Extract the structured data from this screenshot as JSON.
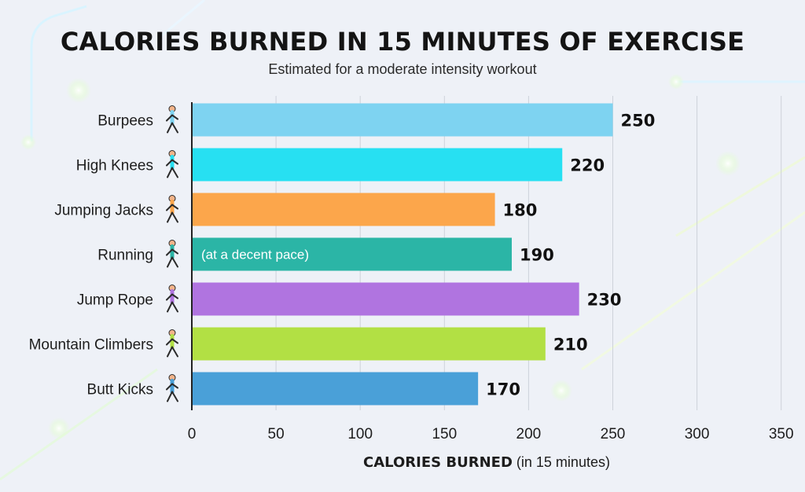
{
  "chart_data": {
    "type": "bar",
    "orientation": "horizontal",
    "title": "CALORIES BURNED IN 15 MINUTES OF EXERCISE",
    "subtitle": "Estimated for a moderate intensity workout",
    "xlabel_main": "CALORIES BURNED",
    "xlabel_note": "(in 15 minutes)",
    "ylabel": "",
    "xlim": [
      0,
      350
    ],
    "xticks": [
      0,
      50,
      100,
      150,
      200,
      250,
      300,
      350
    ],
    "grid": true,
    "categories": [
      "Burpees",
      "High Knees",
      "Jumping Jacks",
      "Running",
      "Jump Rope",
      "Mountain Climbers",
      "Butt Kicks"
    ],
    "values": [
      250,
      220,
      180,
      190,
      230,
      210,
      170
    ],
    "bar_colors": [
      "#7ed3f1",
      "#27e0f2",
      "#fca64b",
      "#2bb5a6",
      "#b074e0",
      "#b2e044",
      "#4aa0d8"
    ],
    "annotations": [
      {
        "category": "Running",
        "text": "(at a decent pace)"
      }
    ],
    "icons": [
      "burpee-person-icon",
      "high-knees-person-icon",
      "jumping-jacks-person-icon",
      "running-person-icon",
      "jump-rope-person-icon",
      "mountain-climber-person-icon",
      "butt-kicks-person-icon"
    ]
  }
}
